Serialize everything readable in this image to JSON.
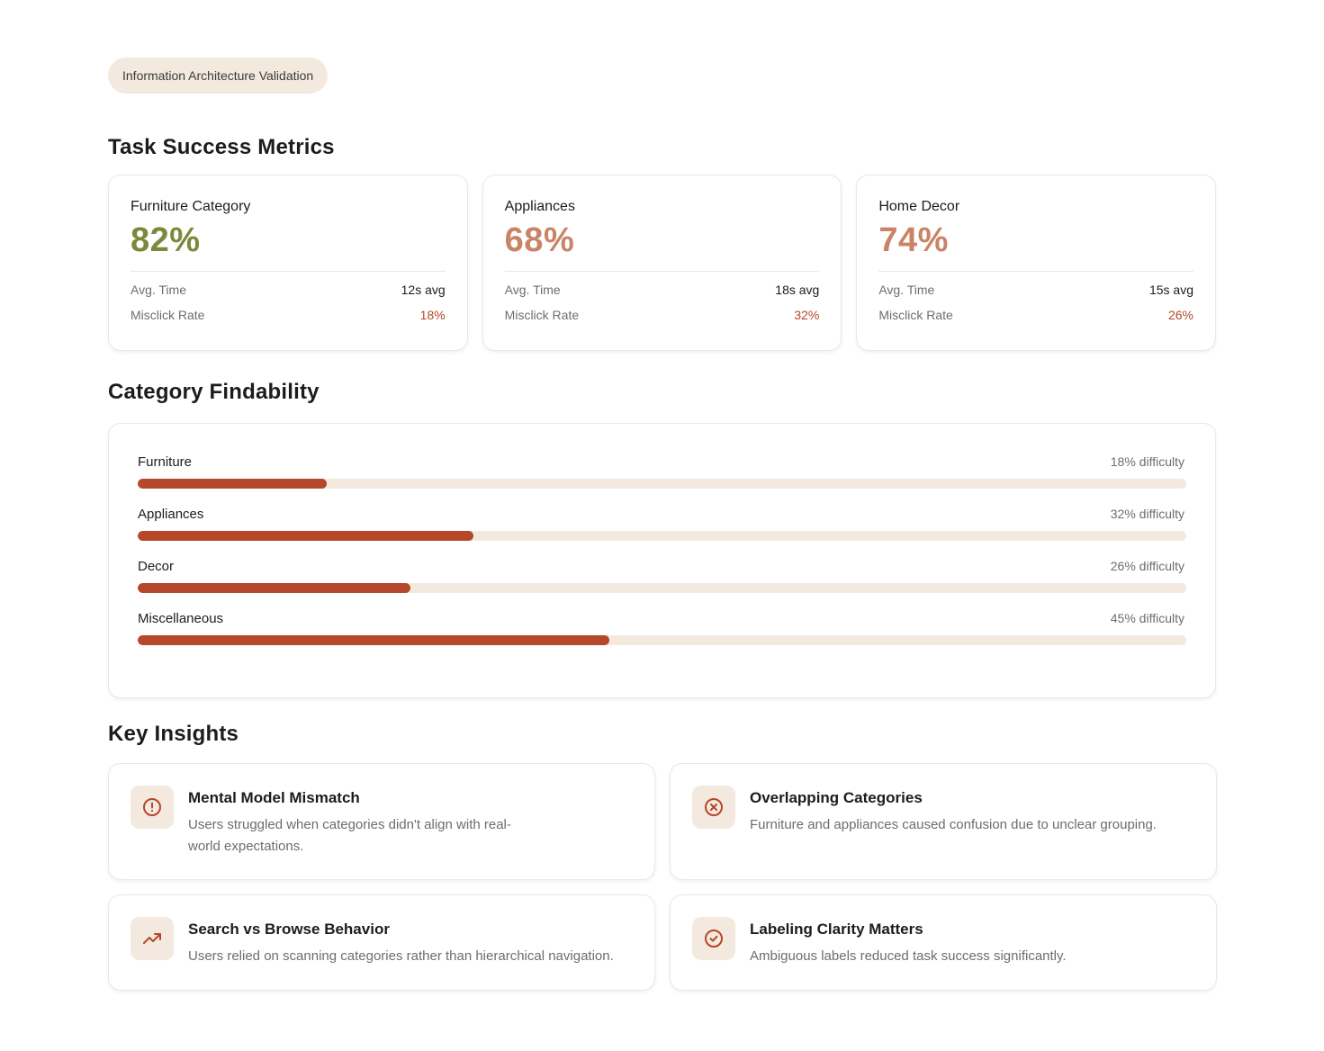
{
  "badge": "Information Architecture Validation",
  "sections": {
    "metrics_title": "Task Success Metrics",
    "findability_title": "Category Findability",
    "insights_title": "Key Insights"
  },
  "metrics": [
    {
      "name": "Furniture Category",
      "value": "82%",
      "value_color": "#7a8a3c",
      "time_label": "Avg. Time",
      "time_value": "12s avg",
      "misclick_label": "Misclick Rate",
      "misclick_value": "18%"
    },
    {
      "name": "Appliances",
      "value": "68%",
      "value_color": "#c98466",
      "time_label": "Avg. Time",
      "time_value": "18s avg",
      "misclick_label": "Misclick Rate",
      "misclick_value": "32%"
    },
    {
      "name": "Home Decor",
      "value": "74%",
      "value_color": "#c98466",
      "time_label": "Avg. Time",
      "time_value": "15s avg",
      "misclick_label": "Misclick Rate",
      "misclick_value": "26%"
    }
  ],
  "findability": [
    {
      "name": "Furniture",
      "label": "18% difficulty",
      "value": 18
    },
    {
      "name": "Appliances",
      "label": "32% difficulty",
      "value": 32
    },
    {
      "name": "Decor",
      "label": "26% difficulty",
      "value": 26
    },
    {
      "name": "Miscellaneous",
      "label": "45% difficulty",
      "value": 45
    }
  ],
  "insights": [
    {
      "icon": "alert-circle-icon",
      "title": "Mental Model Mismatch",
      "desc": "Users struggled when categories didn't align with real-world expectations."
    },
    {
      "icon": "x-circle-icon",
      "title": "Overlapping Categories",
      "desc": "Furniture and appliances caused confusion due to unclear grouping."
    },
    {
      "icon": "trending-up-icon",
      "title": "Search vs Browse Behavior",
      "desc": "Users relied on scanning categories rather than hierarchical navigation."
    },
    {
      "icon": "check-circle-icon",
      "title": "Labeling Clarity Matters",
      "desc": "Ambiguous labels reduced task success significantly."
    }
  ],
  "colors": {
    "accent": "#b5472a",
    "track": "#f3e9de",
    "success": "#7a8a3c",
    "warning": "#c98466"
  }
}
